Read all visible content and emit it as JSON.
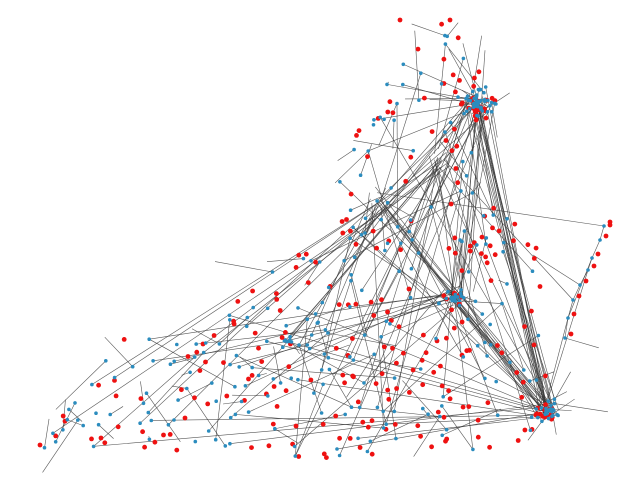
{
  "colors": {
    "background": "#ffffff",
    "edge": "#3a3a3a",
    "connected_node": "#2b8cbe",
    "unconnected_node": "#ee1111"
  }
}
